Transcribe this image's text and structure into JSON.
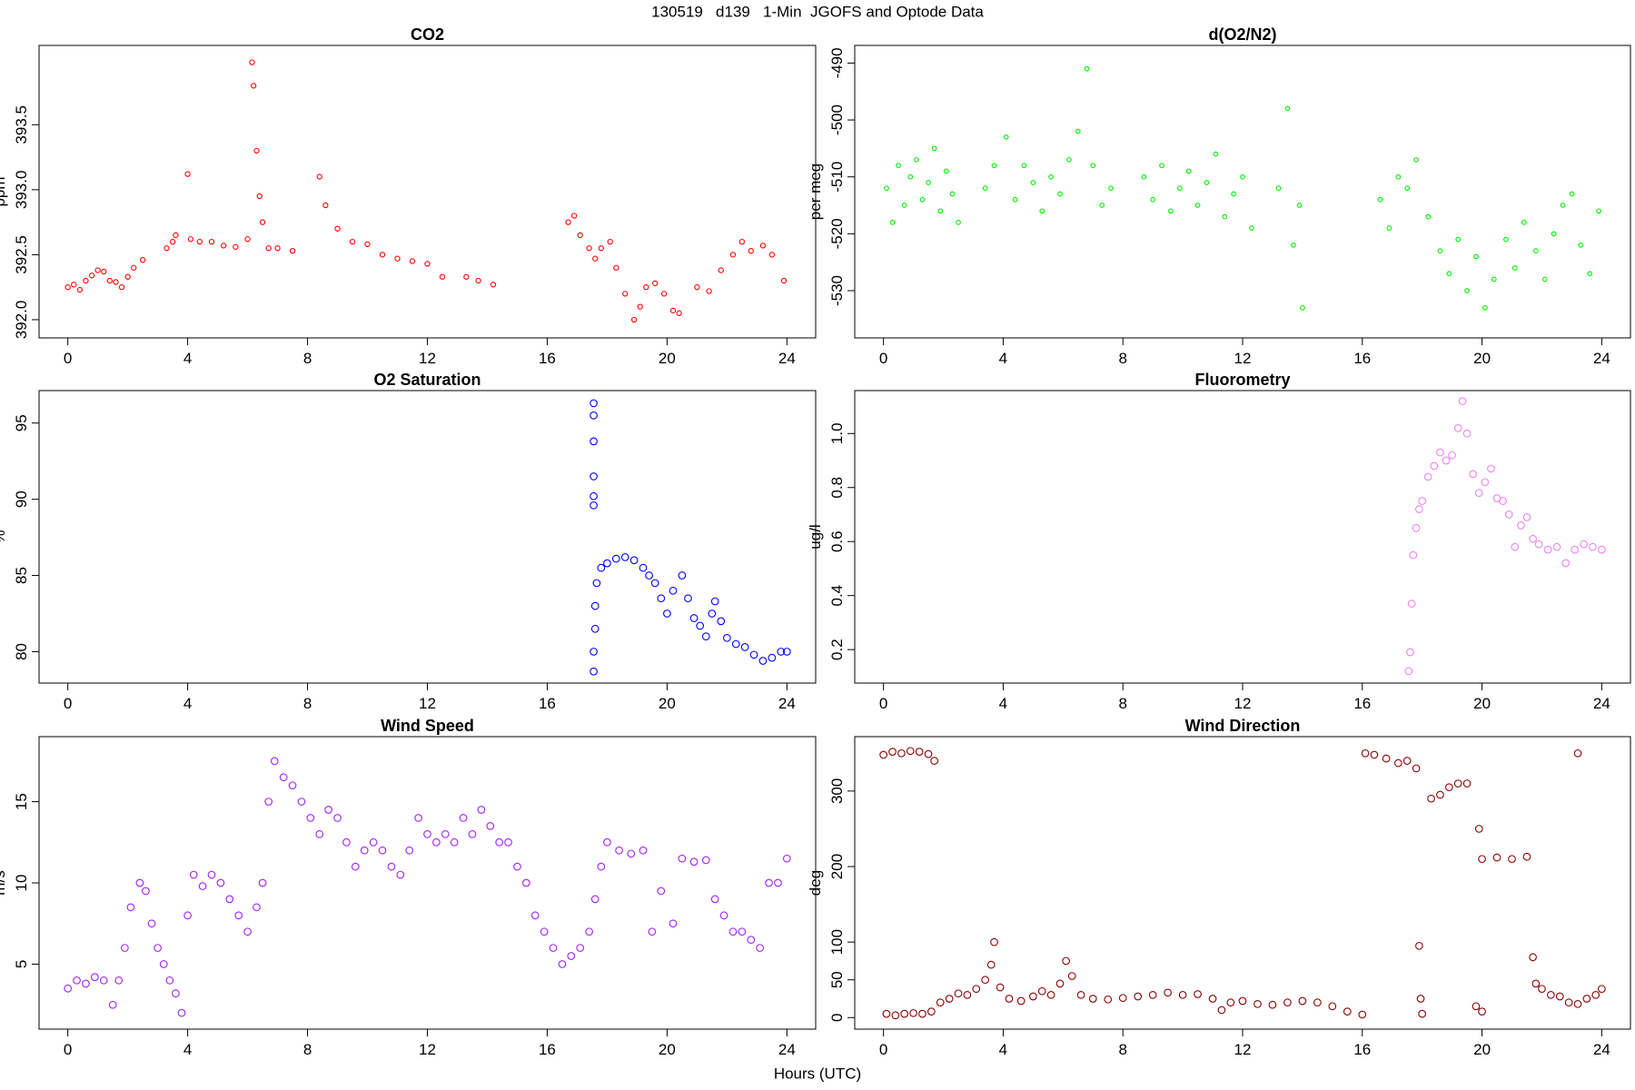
{
  "title": "130519   d139   1-Min  JGOFS and Optode Data",
  "x_label": "Hours (UTC)",
  "chart_data": [
    {
      "type": "scatter",
      "title": "CO2",
      "y_label": "ppm",
      "color": "#ff0000",
      "xlim": [
        -0.96,
        24.96
      ],
      "xticks": [
        0,
        4,
        8,
        12,
        16,
        20,
        24
      ],
      "ylim": [
        391.86,
        394.11
      ],
      "yticks": [
        {
          "value": 392.0,
          "label": "392.0"
        },
        392.5,
        {
          "value": 393.0,
          "label": "393.0"
        },
        393.5
      ],
      "x": [
        0,
        0.2,
        0.4,
        0.6,
        0.8,
        1.0,
        1.2,
        1.4,
        1.6,
        1.8,
        2.0,
        2.2,
        2.5,
        3.3,
        3.5,
        3.6,
        4.0,
        4.1,
        4.4,
        4.8,
        5.2,
        5.6,
        6.0,
        6.15,
        6.2,
        6.3,
        6.4,
        6.5,
        6.7,
        7.0,
        7.5,
        8.4,
        8.6,
        9.0,
        9.5,
        10.0,
        10.5,
        11.0,
        11.5,
        12.0,
        12.5,
        13.3,
        13.7,
        14.2,
        16.7,
        16.9,
        17.1,
        17.4,
        17.6,
        17.8,
        18.1,
        18.3,
        18.6,
        18.9,
        19.1,
        19.3,
        19.6,
        19.9,
        20.2,
        20.4,
        21.0,
        21.4,
        21.8,
        22.2,
        22.5,
        22.8,
        23.2,
        23.5,
        23.9
      ],
      "y": [
        392.25,
        392.27,
        392.23,
        392.3,
        392.34,
        392.38,
        392.37,
        392.3,
        392.29,
        392.25,
        392.33,
        392.4,
        392.46,
        392.55,
        392.6,
        392.65,
        393.12,
        392.62,
        392.6,
        392.6,
        392.57,
        392.56,
        392.62,
        393.98,
        393.8,
        393.3,
        392.95,
        392.75,
        392.55,
        392.55,
        392.53,
        393.1,
        392.88,
        392.7,
        392.6,
        392.58,
        392.5,
        392.47,
        392.45,
        392.43,
        392.33,
        392.33,
        392.3,
        392.27,
        392.75,
        392.8,
        392.65,
        392.55,
        392.47,
        392.55,
        392.6,
        392.4,
        392.2,
        392.0,
        392.1,
        392.25,
        392.28,
        392.2,
        392.07,
        392.05,
        392.25,
        392.22,
        392.38,
        392.5,
        392.6,
        392.53,
        392.57,
        392.5,
        392.3
      ]
    },
    {
      "type": "scatter",
      "title": "d(O2/N2)",
      "y_label": "per meg",
      "color": "#00ee00",
      "xlim": [
        -0.96,
        24.96
      ],
      "xticks": [
        0,
        4,
        8,
        12,
        16,
        20,
        24
      ],
      "ylim": [
        -538.3,
        -486.9
      ],
      "yticks": [
        -530,
        -520,
        -510,
        -500,
        -490
      ],
      "x": [
        0.1,
        0.3,
        0.5,
        0.7,
        0.9,
        1.1,
        1.3,
        1.5,
        1.7,
        1.9,
        2.1,
        2.3,
        2.5,
        3.4,
        3.7,
        4.1,
        4.4,
        4.7,
        5.0,
        5.3,
        5.6,
        5.9,
        6.2,
        6.5,
        6.8,
        7.0,
        7.3,
        7.6,
        8.7,
        9.0,
        9.3,
        9.6,
        9.9,
        10.2,
        10.5,
        10.8,
        11.1,
        11.4,
        11.7,
        12.0,
        12.3,
        13.2,
        13.5,
        13.7,
        13.9,
        14.0,
        16.6,
        16.9,
        17.2,
        17.5,
        17.8,
        18.2,
        18.6,
        18.9,
        19.2,
        19.5,
        19.8,
        20.1,
        20.4,
        20.8,
        21.1,
        21.4,
        21.8,
        22.1,
        22.4,
        22.7,
        23.0,
        23.3,
        23.6,
        23.9
      ],
      "y": [
        -512,
        -518,
        -508,
        -515,
        -510,
        -507,
        -514,
        -511,
        -505,
        -516,
        -509,
        -513,
        -518,
        -512,
        -508,
        -503,
        -514,
        -508,
        -511,
        -516,
        -510,
        -513,
        -507,
        -502,
        -491,
        -508,
        -515,
        -512,
        -510,
        -514,
        -508,
        -516,
        -512,
        -509,
        -515,
        -511,
        -506,
        -517,
        -513,
        -510,
        -519,
        -512,
        -498,
        -522,
        -515,
        -533,
        -514,
        -519,
        -510,
        -512,
        -507,
        -517,
        -523,
        -527,
        -521,
        -530,
        -524,
        -533,
        -528,
        -521,
        -526,
        -518,
        -523,
        -528,
        -520,
        -515,
        -513,
        -522,
        -527,
        -516
      ]
    },
    {
      "type": "scatter",
      "title": "O2 Saturation",
      "y_label": "%",
      "color": "#0000ff",
      "xlim": [
        -0.96,
        24.96
      ],
      "xticks": [
        0,
        4,
        8,
        12,
        16,
        20,
        24
      ],
      "ylim": [
        77.94,
        97.13
      ],
      "yticks": [
        80,
        85,
        90,
        95
      ],
      "x": [
        17.55,
        17.55,
        17.55,
        17.55,
        17.55,
        17.55,
        17.55,
        17.55,
        17.6,
        17.6,
        17.65,
        17.8,
        18.0,
        18.3,
        18.6,
        18.9,
        19.2,
        19.4,
        19.6,
        19.8,
        20.0,
        20.2,
        20.5,
        20.7,
        20.9,
        21.1,
        21.3,
        21.5,
        21.6,
        21.8,
        22.0,
        22.3,
        22.6,
        22.9,
        23.2,
        23.5,
        23.8,
        24.0
      ],
      "y": [
        96.3,
        95.5,
        93.8,
        91.5,
        90.2,
        89.6,
        78.7,
        80,
        81.5,
        83,
        84.5,
        85.5,
        85.8,
        86.1,
        86.2,
        86.0,
        85.5,
        85.0,
        84.5,
        83.5,
        82.5,
        84.0,
        85.0,
        83.5,
        82.2,
        81.7,
        81.0,
        82.5,
        83.3,
        82.0,
        80.9,
        80.5,
        80.3,
        79.8,
        79.4,
        79.6,
        80.0,
        80.0
      ]
    },
    {
      "type": "scatter",
      "title": "Fluorometry",
      "y_label": "ug/l",
      "color": "#ee82ee",
      "xlim": [
        -0.96,
        24.96
      ],
      "xticks": [
        0,
        4,
        8,
        12,
        16,
        20,
        24
      ],
      "ylim": [
        0.076,
        1.159
      ],
      "yticks": [
        0.2,
        0.4,
        0.6,
        0.8,
        {
          "value": 1.0,
          "label": "1.0"
        }
      ],
      "x": [
        17.55,
        17.6,
        17.65,
        17.7,
        17.8,
        17.9,
        18.0,
        18.2,
        18.4,
        18.6,
        18.8,
        19.0,
        19.2,
        19.35,
        19.5,
        19.7,
        19.9,
        20.1,
        20.3,
        20.5,
        20.7,
        20.9,
        21.1,
        21.3,
        21.5,
        21.7,
        21.9,
        22.2,
        22.5,
        22.8,
        23.1,
        23.4,
        23.7,
        24.0
      ],
      "y": [
        0.12,
        0.19,
        0.37,
        0.55,
        0.65,
        0.72,
        0.75,
        0.84,
        0.88,
        0.93,
        0.9,
        0.92,
        1.02,
        1.12,
        1.0,
        0.85,
        0.78,
        0.82,
        0.87,
        0.76,
        0.75,
        0.7,
        0.58,
        0.66,
        0.69,
        0.61,
        0.59,
        0.57,
        0.58,
        0.52,
        0.57,
        0.59,
        0.58,
        0.57
      ]
    },
    {
      "type": "scatter",
      "title": "Wind Speed",
      "y_label": "m/s",
      "color": "#a020f0",
      "xlim": [
        -0.96,
        24.96
      ],
      "xticks": [
        0,
        4,
        8,
        12,
        16,
        20,
        24
      ],
      "ylim": [
        1,
        19
      ],
      "yticks": [
        5,
        10,
        15
      ],
      "x": [
        0,
        0.3,
        0.6,
        0.9,
        1.2,
        1.5,
        1.7,
        1.9,
        2.1,
        2.4,
        2.6,
        2.8,
        3.0,
        3.2,
        3.4,
        3.6,
        3.8,
        4.0,
        4.2,
        4.5,
        4.8,
        5.1,
        5.4,
        5.7,
        6.0,
        6.3,
        6.5,
        6.7,
        6.9,
        7.2,
        7.5,
        7.8,
        8.1,
        8.4,
        8.7,
        9.0,
        9.3,
        9.6,
        9.9,
        10.2,
        10.5,
        10.8,
        11.1,
        11.4,
        11.7,
        12.0,
        12.3,
        12.6,
        12.9,
        13.2,
        13.5,
        13.8,
        14.1,
        14.4,
        14.7,
        15.0,
        15.3,
        15.6,
        15.9,
        16.2,
        16.5,
        16.8,
        17.1,
        17.4,
        17.6,
        17.8,
        18.0,
        18.4,
        18.8,
        19.2,
        19.5,
        19.8,
        20.2,
        20.5,
        20.9,
        21.3,
        21.6,
        21.9,
        22.2,
        22.5,
        22.8,
        23.1,
        23.4,
        23.7,
        24.0
      ],
      "y": [
        3.5,
        4,
        3.8,
        4.2,
        4,
        2.5,
        4,
        6,
        8.5,
        10,
        9.5,
        7.5,
        6,
        5,
        4,
        3.2,
        2,
        8,
        10.5,
        9.8,
        10.5,
        10,
        9,
        8,
        7,
        8.5,
        10,
        15,
        17.5,
        16.5,
        16,
        15,
        14,
        13,
        14.5,
        14,
        12.5,
        11,
        12,
        12.5,
        12,
        11,
        10.5,
        12,
        14,
        13,
        12.5,
        13,
        12.5,
        14,
        13,
        14.5,
        13.5,
        12.5,
        12.5,
        11,
        10,
        8,
        7,
        6,
        5,
        5.5,
        6,
        7,
        9,
        11,
        12.5,
        12,
        11.8,
        12,
        7,
        9.5,
        7.5,
        11.5,
        11.3,
        11.4,
        9,
        8,
        7,
        7,
        6.5,
        6,
        10,
        10,
        11.5
      ]
    },
    {
      "type": "scatter",
      "title": "Wind Direction",
      "y_label": "deg",
      "color": "#8b0000",
      "xlim": [
        -0.96,
        24.96
      ],
      "xticks": [
        0,
        4,
        8,
        12,
        16,
        20,
        24
      ],
      "ylim": [
        -15.3,
        372
      ],
      "yticks": [
        0,
        50,
        100,
        200,
        300
      ],
      "x": [
        0,
        0.3,
        0.6,
        0.9,
        1.2,
        1.5,
        1.7,
        0.1,
        0.4,
        0.7,
        1.0,
        1.3,
        1.6,
        1.9,
        2.2,
        2.5,
        2.8,
        3.1,
        3.4,
        3.6,
        3.7,
        3.9,
        4.2,
        4.6,
        5.0,
        5.3,
        5.6,
        5.9,
        6.1,
        6.3,
        6.6,
        7.0,
        7.5,
        8.0,
        8.5,
        9.0,
        9.5,
        10.0,
        10.5,
        11.0,
        11.3,
        11.6,
        12.0,
        12.5,
        13.0,
        13.5,
        14.0,
        14.5,
        15.0,
        15.5,
        16.0,
        16.1,
        16.4,
        16.8,
        17.2,
        17.5,
        17.8,
        17.9,
        17.95,
        18.0,
        18.3,
        18.6,
        18.9,
        19.2,
        19.5,
        19.9,
        19.8,
        20.0,
        20.0,
        20.5,
        21.0,
        21.5,
        21.7,
        21.8,
        22.0,
        22.3,
        22.6,
        22.9,
        23.2,
        23.2,
        23.5,
        23.8,
        24.0
      ],
      "y": [
        348,
        352,
        350,
        353,
        352,
        349,
        340,
        5,
        3,
        5,
        6,
        5,
        8,
        20,
        25,
        32,
        30,
        38,
        50,
        70,
        100,
        40,
        25,
        22,
        28,
        35,
        30,
        45,
        75,
        55,
        30,
        25,
        24,
        26,
        28,
        30,
        33,
        30,
        31,
        25,
        10,
        20,
        22,
        18,
        17,
        20,
        22,
        20,
        15,
        8,
        4,
        350,
        348,
        343,
        337,
        340,
        330,
        95,
        25,
        5,
        290,
        295,
        305,
        310,
        310,
        250,
        15,
        8,
        210,
        212,
        210,
        213,
        80,
        45,
        38,
        30,
        28,
        20,
        18,
        350,
        25,
        30,
        38
      ]
    }
  ]
}
